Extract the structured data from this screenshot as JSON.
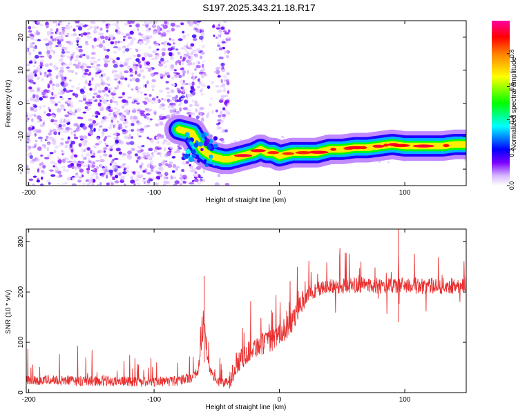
{
  "title": "S197.2025.343.21.18.R17",
  "chart_data": [
    {
      "type": "heatmap",
      "xlabel": "Height of straight line (km)",
      "ylabel": "Frequency (Hz)",
      "xlim": [
        -202,
        149
      ],
      "ylim": [
        -25,
        25
      ],
      "xticks": [
        -200,
        -100,
        0,
        100
      ],
      "yticks": [
        -20,
        -10,
        0,
        10,
        20
      ],
      "colorbar": {
        "label": "Normalized spectral amplitude",
        "range": [
          0,
          1
        ],
        "ticks": [
          0.0,
          0.2,
          0.4,
          0.6,
          0.8
        ],
        "tick_labels": [
          "0.0",
          "0.2",
          "0.4",
          "0.6",
          "0.8"
        ],
        "colormap": [
          "#ffffff",
          "#d8b8ff",
          "#7a00ff",
          "#0000ff",
          "#00ffff",
          "#00ff00",
          "#ffff00",
          "#ff8000",
          "#ff0000",
          "#ff00a0"
        ]
      },
      "ridge": {
        "x": [
          -80,
          -70,
          -62,
          -55,
          -45,
          -40,
          -30,
          -20,
          -15,
          -10,
          -5,
          0,
          10,
          20,
          30,
          40,
          50,
          60,
          70,
          80,
          90,
          100,
          110,
          120,
          130,
          140,
          149
        ],
        "y": [
          -8,
          -9,
          -14,
          -16,
          -17,
          -17,
          -16,
          -15,
          -14,
          -15,
          -15,
          -16,
          -15,
          -15,
          -15,
          -14,
          -14,
          -13.5,
          -13.5,
          -13,
          -12.5,
          -13,
          -13,
          -13,
          -13,
          -12.5,
          -12.5
        ]
      }
    },
    {
      "type": "line",
      "xlabel": "Height of straight line (km)",
      "ylabel": "SNR (10 * v/v)",
      "xlim": [
        -202,
        149
      ],
      "ylim": [
        0,
        325
      ],
      "xticks": [
        -200,
        -100,
        0,
        100
      ],
      "yticks": [
        0,
        100,
        200,
        300
      ],
      "color": "#e83030",
      "series": [
        {
          "x": [
            -202,
            -190,
            -180,
            -170,
            -160,
            -150,
            -140,
            -130,
            -120,
            -110,
            -100,
            -90,
            -80,
            -70,
            -65,
            -62,
            -60,
            -58,
            -55,
            -50,
            -45,
            -40,
            -35,
            -30,
            -25,
            -20,
            -15,
            -10,
            -5,
            0,
            5,
            10,
            15,
            20,
            25,
            30,
            40,
            50,
            60,
            70,
            80,
            90,
            100,
            110,
            120,
            130,
            140,
            149
          ],
          "y": [
            25,
            25,
            25,
            24,
            23,
            23,
            23,
            22,
            22,
            22,
            22,
            22,
            24,
            30,
            45,
            90,
            140,
            80,
            40,
            25,
            18,
            20,
            55,
            70,
            80,
            90,
            95,
            100,
            105,
            115,
            125,
            140,
            165,
            190,
            200,
            205,
            210,
            212,
            214,
            214,
            212,
            212,
            214,
            212,
            212,
            212,
            212,
            215
          ]
        }
      ]
    }
  ]
}
